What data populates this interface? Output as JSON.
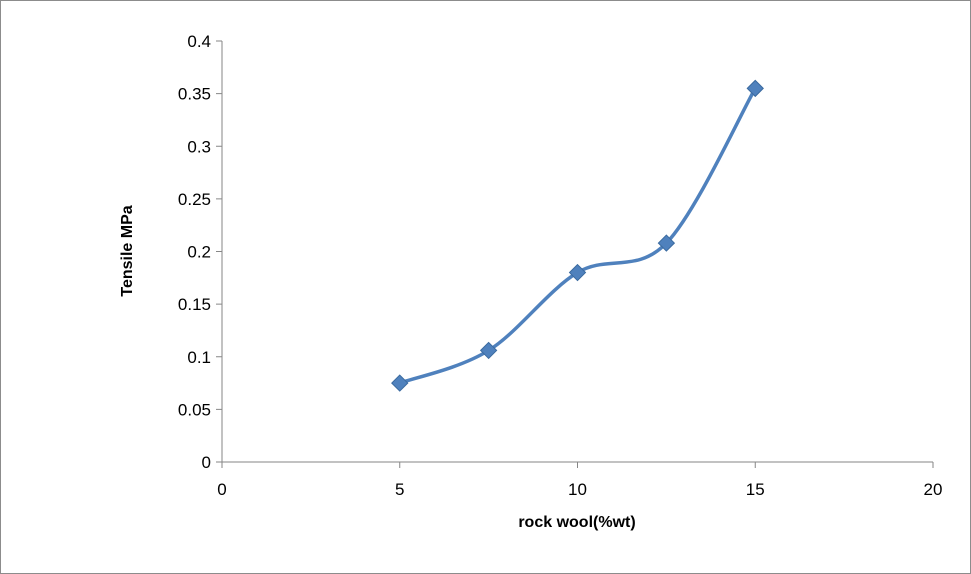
{
  "chart_data": {
    "type": "scatter",
    "title": "",
    "xlabel": "rock wool(%wt)",
    "ylabel": "Tensile MPa",
    "xlim": [
      0,
      20
    ],
    "ylim": [
      0,
      0.4
    ],
    "x_ticks": [
      "0",
      "5",
      "10",
      "15",
      "20"
    ],
    "y_ticks": [
      "0",
      "0.05",
      "0.1",
      "0.15",
      "0.2",
      "0.25",
      "0.3",
      "0.35",
      "0.4"
    ],
    "grid": false,
    "legend": "none",
    "line_style": "smoothed",
    "marker": "diamond",
    "color": "#4f81bd",
    "series": [
      {
        "x": [
          5,
          7.5,
          10,
          12.5,
          15
        ],
        "y": [
          0.075,
          0.106,
          0.18,
          0.208,
          0.355
        ]
      }
    ]
  }
}
